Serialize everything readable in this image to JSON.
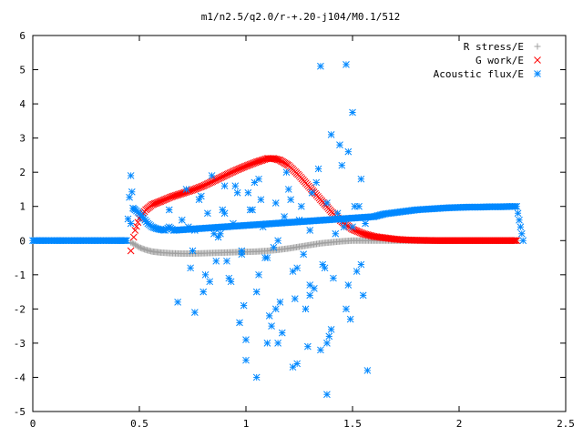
{
  "chart_data": {
    "type": "scatter",
    "title": "m1/n2.5/q2.0/r-+.20-j104/M0.1/512",
    "xlabel": "",
    "ylabel": "",
    "xlim": [
      0,
      2.5
    ],
    "ylim": [
      -5,
      6
    ],
    "xticks": [
      0,
      0.5,
      1,
      1.5,
      2,
      2.5
    ],
    "xtick_labels": [
      "0",
      "0.5",
      "1",
      "1.5",
      "2",
      "2.5"
    ],
    "yticks": [
      -5,
      -4,
      -3,
      -2,
      -1,
      0,
      1,
      2,
      3,
      4,
      5,
      6
    ],
    "ytick_labels": [
      "-5",
      "-4",
      "-3",
      "-2",
      "-1",
      "0",
      "1",
      "2",
      "3",
      "4",
      "5",
      "6"
    ],
    "grid": false,
    "legend_position": "top-right",
    "series": [
      {
        "name": "R stress/E",
        "marker": "plus",
        "color": "#a0a0a0",
        "x": [
          0.46,
          0.48,
          0.5,
          0.53,
          0.56,
          0.6,
          0.65,
          0.7,
          0.75,
          0.8,
          0.85,
          0.9,
          0.95,
          1.0,
          1.05,
          1.1,
          1.15,
          1.2,
          1.25,
          1.3,
          1.35,
          1.4,
          1.45,
          1.5,
          1.55,
          1.6,
          1.65,
          1.7,
          1.75,
          1.8,
          1.9,
          2.0,
          2.1,
          2.2,
          2.27
        ],
        "y": [
          -0.05,
          -0.12,
          -0.2,
          -0.27,
          -0.32,
          -0.35,
          -0.37,
          -0.38,
          -0.38,
          -0.37,
          -0.36,
          -0.35,
          -0.34,
          -0.33,
          -0.32,
          -0.3,
          -0.27,
          -0.23,
          -0.18,
          -0.13,
          -0.08,
          -0.05,
          -0.02,
          0.0,
          0.0,
          0.0,
          0.0,
          0.0,
          0.0,
          0.0,
          0.0,
          0.0,
          0.0,
          0.0,
          0.0
        ]
      },
      {
        "name": "G work/E",
        "marker": "cross",
        "color": "#ff0000",
        "x": [
          0.46,
          0.48,
          0.5,
          0.53,
          0.56,
          0.6,
          0.65,
          0.7,
          0.75,
          0.8,
          0.85,
          0.9,
          0.95,
          1.0,
          1.05,
          1.08,
          1.1,
          1.13,
          1.16,
          1.2,
          1.25,
          1.3,
          1.35,
          1.4,
          1.45,
          1.5,
          1.55,
          1.6,
          1.65,
          1.7,
          1.75,
          1.8,
          1.9,
          2.0,
          2.1,
          2.2,
          2.27
        ],
        "y": [
          -0.3,
          0.3,
          0.65,
          0.9,
          1.05,
          1.15,
          1.28,
          1.38,
          1.48,
          1.6,
          1.75,
          1.9,
          2.05,
          2.18,
          2.3,
          2.36,
          2.4,
          2.4,
          2.35,
          2.2,
          1.9,
          1.55,
          1.2,
          0.85,
          0.55,
          0.33,
          0.2,
          0.12,
          0.08,
          0.04,
          0.02,
          0.01,
          0.0,
          0.0,
          0.0,
          0.0,
          0.0
        ]
      },
      {
        "name": "Acoustic flux/E",
        "marker": "star",
        "color": "#0088ff",
        "x": [
          0.0,
          0.05,
          0.1,
          0.15,
          0.2,
          0.25,
          0.3,
          0.35,
          0.4,
          0.44,
          0.46,
          0.47,
          0.48,
          0.5,
          0.52,
          0.54,
          0.56,
          0.58,
          0.6,
          0.62,
          0.64,
          0.66,
          1.6,
          1.65,
          1.7,
          1.75,
          1.8,
          1.85,
          1.9,
          1.95,
          2.0,
          2.05,
          2.1,
          2.15,
          2.2,
          2.25,
          2.27,
          2.3,
          0.46,
          0.7,
          0.72,
          0.74,
          0.76,
          0.78,
          0.8,
          0.82,
          0.84,
          0.86,
          0.88,
          0.9,
          0.92,
          0.94,
          0.96,
          0.98,
          1.0,
          1.02,
          1.04,
          1.06,
          1.08,
          1.1,
          1.12,
          1.14,
          1.16,
          1.18,
          1.2,
          1.22,
          1.24,
          1.26,
          1.28,
          1.3,
          1.32,
          1.34,
          1.36,
          1.38,
          1.4,
          1.42,
          1.44,
          1.46,
          1.48,
          1.5,
          1.52,
          1.54,
          1.56,
          0.75,
          0.79,
          0.83,
          0.87,
          0.91,
          0.95,
          0.99,
          1.03,
          1.07,
          1.11,
          1.15,
          1.19,
          1.23,
          1.27,
          1.31,
          1.35,
          1.39,
          1.43,
          1.47,
          1.51,
          1.55,
          0.73,
          0.81,
          0.89,
          0.97,
          1.05,
          1.13,
          1.21,
          1.29,
          1.37,
          1.45,
          1.53,
          1.57,
          0.85,
          0.93,
          1.01,
          1.09,
          1.17,
          1.25,
          1.33,
          1.41,
          1.49,
          0.9,
          0.98,
          1.06,
          1.14,
          1.22,
          1.3,
          1.38,
          1.46,
          1.54,
          1.35,
          1.4,
          1.47,
          1.5,
          1.38,
          1.48,
          1.0,
          1.05,
          1.1,
          1.15,
          1.24,
          1.3,
          0.76,
          0.68,
          0.64
        ],
        "y": [
          0.0,
          0.0,
          0.0,
          0.0,
          0.0,
          0.0,
          0.0,
          0.0,
          0.0,
          0.0,
          1.9,
          0.95,
          0.9,
          0.8,
          0.65,
          0.5,
          0.4,
          0.35,
          0.32,
          0.3,
          0.4,
          0.3,
          0.7,
          0.78,
          0.82,
          0.86,
          0.9,
          0.92,
          0.94,
          0.96,
          0.97,
          0.98,
          0.98,
          0.99,
          0.99,
          1.0,
          1.0,
          0.0,
          0.5,
          0.6,
          1.5,
          -0.8,
          0.3,
          1.2,
          -1.5,
          0.8,
          1.9,
          -0.6,
          0.2,
          1.6,
          -1.1,
          0.5,
          1.4,
          -0.4,
          -2.9,
          0.9,
          1.7,
          -1.0,
          0.4,
          -0.5,
          -2.5,
          1.1,
          -1.8,
          0.7,
          1.5,
          -3.7,
          -0.8,
          1.0,
          -2.0,
          0.3,
          -1.4,
          2.1,
          -0.7,
          1.1,
          -2.6,
          0.2,
          2.8,
          0.6,
          -1.3,
          0.4,
          -0.9,
          1.8,
          0.5,
          -0.3,
          1.3,
          -1.2,
          0.1,
          -0.6,
          1.6,
          -1.9,
          0.9,
          1.2,
          -2.2,
          0.0,
          2.0,
          -1.7,
          -0.4,
          1.4,
          -3.2,
          -2.8,
          0.8,
          -2.0,
          1.0,
          -1.6,
          0.4,
          -1.0,
          0.9,
          -2.4,
          -1.5,
          -0.2,
          1.2,
          -3.1,
          -0.8,
          2.2,
          1.0,
          -3.8,
          0.2,
          -1.2,
          1.4,
          -0.5,
          -2.7,
          0.6,
          1.7,
          -1.1,
          -2.3,
          0.8,
          -0.3,
          1.8,
          -2.0,
          -0.9,
          -1.6,
          -3.0,
          0.4,
          -0.7,
          5.1,
          3.1,
          5.15,
          3.75,
          -4.5,
          2.6,
          -3.5,
          -4.0,
          -3.0,
          -3.0,
          -3.6,
          -1.3,
          -2.1,
          -1.8,
          0.9
        ]
      }
    ]
  }
}
